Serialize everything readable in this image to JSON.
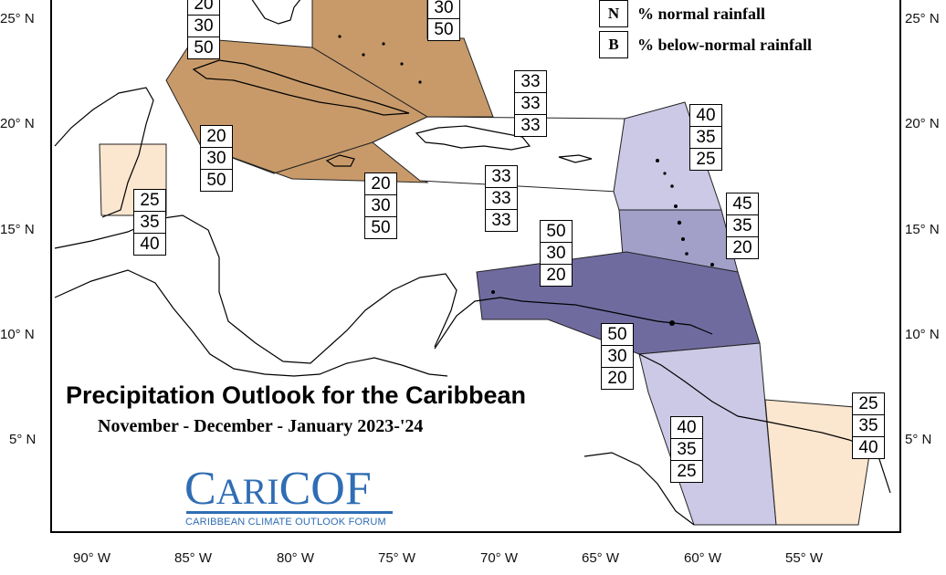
{
  "title": "Precipitation Outlook for the Caribbean",
  "subtitle": "November - December - January 2023-'24",
  "legend": [
    {
      "key": "N",
      "text": "% normal rainfall"
    },
    {
      "key": "B",
      "text": "% below-normal rainfall"
    }
  ],
  "lat_labels": [
    "25° N",
    "20° N",
    "15° N",
    "10° N",
    "5° N"
  ],
  "lon_labels": [
    "90° W",
    "85° W",
    "80° W",
    "75° W",
    "70° W",
    "65° W",
    "60° W",
    "55° W"
  ],
  "logo": {
    "name_part1": "C",
    "name_part2": "ARI",
    "name_part3": "COF",
    "tagline": "CARIBBEAN CLIMATE OUTLOOK FORUM"
  },
  "colors": {
    "below_normal_strong": "#c89a6a",
    "below_normal_weak": "#fbe6cf",
    "above_normal_strong": "#706b9f",
    "above_normal_mid": "#a29fc9",
    "above_normal_weak": "#cbc9e5",
    "normal": "#ffffff"
  },
  "probability_boxes": [
    {
      "id": "box-1",
      "values": [
        "20",
        "30",
        "50"
      ]
    },
    {
      "id": "box-2",
      "values": [
        "30",
        "50"
      ]
    },
    {
      "id": "box-3",
      "values": [
        "33",
        "33",
        "33"
      ]
    },
    {
      "id": "box-4",
      "values": [
        "20",
        "30",
        "50"
      ]
    },
    {
      "id": "box-5",
      "values": [
        "25",
        "35",
        "40"
      ]
    },
    {
      "id": "box-6",
      "values": [
        "20",
        "30",
        "50"
      ]
    },
    {
      "id": "box-7",
      "values": [
        "33",
        "33",
        "33"
      ]
    },
    {
      "id": "box-8",
      "values": [
        "40",
        "35",
        "25"
      ]
    },
    {
      "id": "box-9",
      "values": [
        "45",
        "35",
        "20"
      ]
    },
    {
      "id": "box-10",
      "values": [
        "50",
        "30",
        "20"
      ]
    },
    {
      "id": "box-11",
      "values": [
        "50",
        "30",
        "20"
      ]
    },
    {
      "id": "box-12",
      "values": [
        "40",
        "35",
        "25"
      ]
    },
    {
      "id": "box-13",
      "values": [
        "25",
        "35",
        "40"
      ]
    }
  ]
}
